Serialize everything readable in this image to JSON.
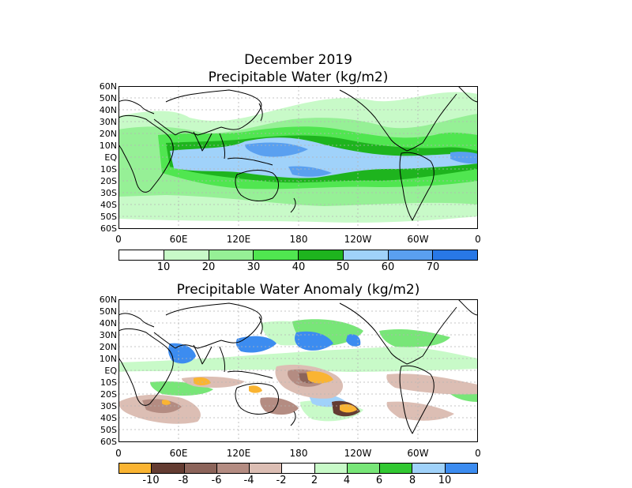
{
  "header": {
    "title": "December 2019",
    "map1_title": "Precipitable Water (kg/m2)",
    "map2_title": "Precipitable Water Anomaly (kg/m2)"
  },
  "axes": {
    "lat_labels": [
      "60N",
      "50N",
      "40N",
      "30N",
      "20N",
      "10N",
      "EQ",
      "10S",
      "20S",
      "30S",
      "40S",
      "50S",
      "60S"
    ],
    "lon_labels": [
      "0",
      "60E",
      "120E",
      "180",
      "120W",
      "60W",
      "0"
    ]
  },
  "colorbar1": {
    "colors": [
      "#ffffff",
      "#c8fac8",
      "#96f096",
      "#50e650",
      "#1eb41e",
      "#a0d2fa",
      "#5aa0f0",
      "#2878e6"
    ],
    "labels": [
      "10",
      "20",
      "30",
      "40",
      "50",
      "60",
      "70"
    ]
  },
  "colorbar2": {
    "colors": [
      "#fab432",
      "#643c32",
      "#8c645a",
      "#b48c82",
      "#dcbeb4",
      "#ffffff",
      "#c8fac8",
      "#78e678",
      "#32c832",
      "#a0d2fa",
      "#3c8cf0"
    ],
    "labels": [
      "-10",
      "-8",
      "-6",
      "-4",
      "-2",
      "2",
      "4",
      "6",
      "8",
      "10"
    ]
  }
}
